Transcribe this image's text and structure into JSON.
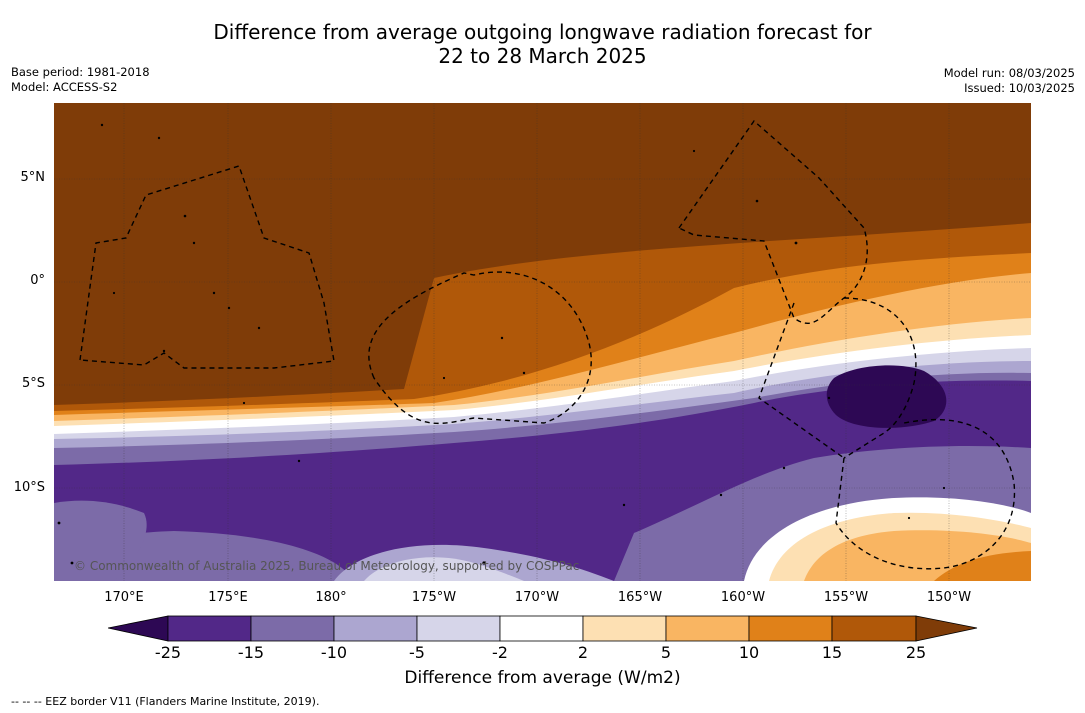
{
  "header": {
    "title_line1": "Difference from average outgoing longwave radiation forecast for",
    "title_line2": "22 to 28 March 2025"
  },
  "meta_left": {
    "base_period": "Base period: 1981-2018",
    "model": "Model: ACCESS-S2"
  },
  "meta_right": {
    "model_run": "Model run: 08/03/2025",
    "issued": "Issued: 10/03/2025"
  },
  "map": {
    "copyright": "© Commonwealth of Australia 2025, Bureau of Meteorology, supported by COSPPac",
    "lon_labels": [
      "170°E",
      "175°E",
      "180°",
      "175°W",
      "170°W",
      "165°W",
      "160°W",
      "155°W",
      "150°W"
    ],
    "lat_labels": [
      "5°N",
      "0°",
      "5°S",
      "10°S"
    ],
    "grid": true
  },
  "colorbar": {
    "ticks": [
      "-25",
      "-15",
      "-10",
      "-5",
      "-2",
      "2",
      "5",
      "10",
      "15",
      "25"
    ],
    "colors": {
      "lt_-25": "#2d0854",
      "-25_-15": "#522888",
      "-15_-10": "#7c6ba8",
      "-10_-5": "#aca6d0",
      "-5_-2": "#d6d5e9",
      "-2_2": "#ffffff",
      "2_5": "#fde0b3",
      "5_10": "#f9b562",
      "10_15": "#e08119",
      "15_25": "#b05809",
      "gt_25": "#7f3c08"
    },
    "label": "Difference from average (W/m2)"
  },
  "footnote": "--  --  -- EEZ border V11 (Flanders Marine Institute, 2019)."
}
